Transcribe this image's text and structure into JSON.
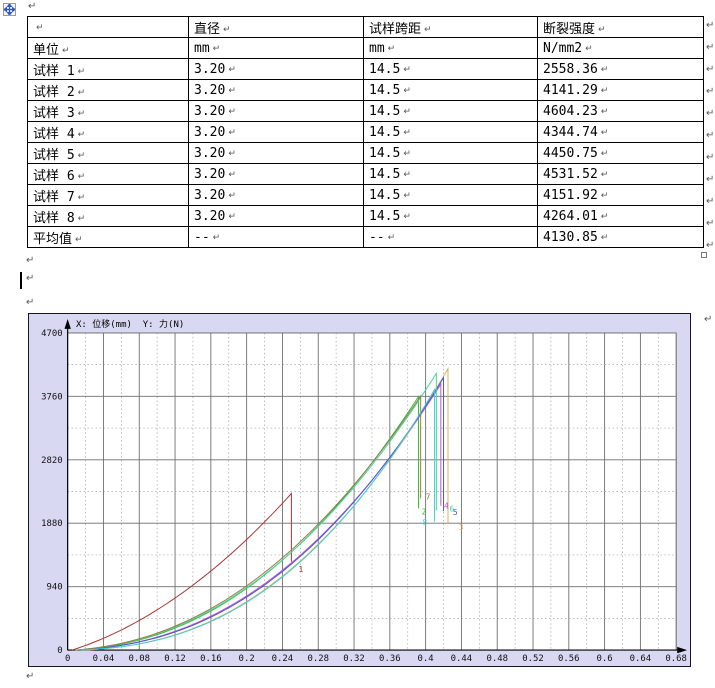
{
  "marks": {
    "end": "↵"
  },
  "table": {
    "rows": [
      [
        "",
        "直径",
        "试样跨距",
        "断裂强度"
      ],
      [
        "单位",
        "mm",
        "mm",
        "N/mm2"
      ],
      [
        "试样 1",
        "3.20",
        "14.5",
        "2558.36"
      ],
      [
        "试样 2",
        "3.20",
        "14.5",
        "4141.29"
      ],
      [
        "试样 3",
        "3.20",
        "14.5",
        "4604.23"
      ],
      [
        "试样 4",
        "3.20",
        "14.5",
        "4344.74"
      ],
      [
        "试样 5",
        "3.20",
        "14.5",
        "4450.75"
      ],
      [
        "试样 6",
        "3.20",
        "14.5",
        "4531.52"
      ],
      [
        "试样 7",
        "3.20",
        "14.5",
        "4151.92"
      ],
      [
        "试样 8",
        "3.20",
        "14.5",
        "4264.01"
      ],
      [
        "平均值",
        "--",
        "--",
        "4130.85"
      ]
    ]
  },
  "chart": {
    "title": "X: 位移(mm)  Y: 力(N)",
    "chart_data": {
      "type": "line",
      "xlabel": "位移(mm)",
      "ylabel": "力(N)",
      "xlim": [
        0,
        0.68
      ],
      "ylim": [
        0,
        4700
      ],
      "x_ticks": [
        "0",
        "0.04",
        "0.08",
        "0.12",
        "0.16",
        "0.2",
        "0.24",
        "0.28",
        "0.32",
        "0.36",
        "0.4",
        "0.44",
        "0.48",
        "0.52",
        "0.56",
        "0.6",
        "0.64",
        "0.68"
      ],
      "y_ticks": [
        "0",
        "940",
        "1880",
        "2820",
        "3760",
        "4700"
      ],
      "grid": "major solid every 0.04 / 940, dotted every 0.02 / 470",
      "series": [
        {
          "label": "1",
          "color": "#a83535",
          "start_x": 0.005,
          "break_x": 0.25,
          "peak_force": 2320,
          "drop_to": 1310,
          "label_x": 0.258,
          "label_y": 1160,
          "shape_lin": 0.45,
          "shape_pow": 2.0
        },
        {
          "label": "2",
          "color": "#2fbf2f",
          "start_x": 0.01,
          "break_x": 0.392,
          "peak_force": 3755,
          "drop_to": 2100,
          "label_x": 0.3955,
          "label_y": 2010,
          "shape_lin": 0.1,
          "shape_pow": 2.2
        },
        {
          "label": "3",
          "color": "#ddae62",
          "start_x": 0.02,
          "break_x": 0.425,
          "peak_force": 4170,
          "drop_to": 1870,
          "label_x": 0.437,
          "label_y": 1780,
          "shape_lin": 0.08,
          "shape_pow": 2.35
        },
        {
          "label": "4",
          "color": "#bb55cc",
          "start_x": 0.012,
          "break_x": 0.417,
          "peak_force": 3940,
          "drop_to": 2140,
          "label_x": 0.4205,
          "label_y": 2100,
          "shape_lin": 0.09,
          "shape_pow": 2.25
        },
        {
          "label": "5",
          "color": "#4a55d6",
          "start_x": 0.012,
          "break_x": 0.42,
          "peak_force": 4035,
          "drop_to": 2060,
          "label_x": 0.4305,
          "label_y": 2000,
          "shape_lin": 0.09,
          "shape_pow": 2.3
        },
        {
          "label": "6",
          "color": "#45d6a5",
          "start_x": 0.008,
          "break_x": 0.412,
          "peak_force": 4100,
          "drop_to": 2070,
          "label_x": 0.4265,
          "label_y": 2050,
          "shape_lin": 0.11,
          "shape_pow": 2.2
        },
        {
          "label": "7",
          "color": "#a07848",
          "start_x": 0.01,
          "break_x": 0.3945,
          "peak_force": 3765,
          "drop_to": 2250,
          "label_x": 0.4,
          "label_y": 2230,
          "shape_lin": 0.12,
          "shape_pow": 2.15
        },
        {
          "label": "8",
          "color": "#3ecfcf",
          "start_x": 0.015,
          "break_x": 0.41,
          "peak_force": 3860,
          "drop_to": 1900,
          "label_x": 0.3965,
          "label_y": 1850,
          "shape_lin": 0.07,
          "shape_pow": 2.4
        }
      ]
    }
  }
}
